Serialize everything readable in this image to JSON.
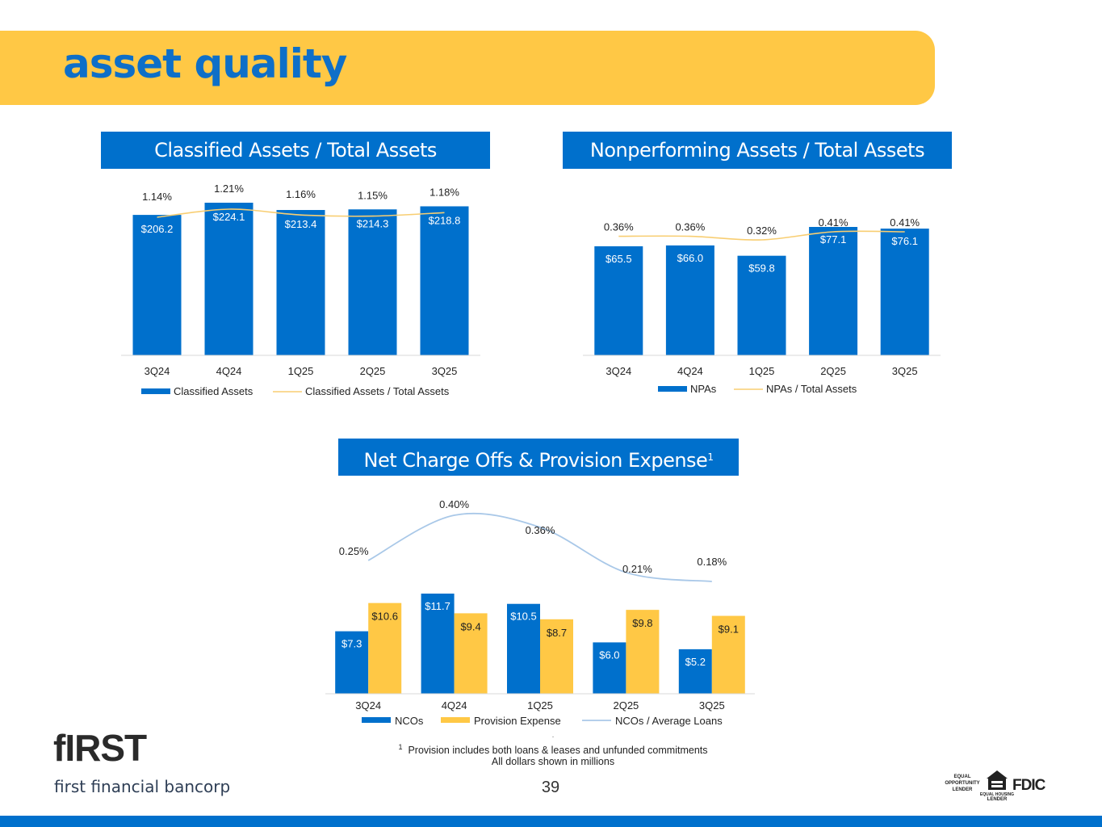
{
  "page": {
    "title": "asset quality",
    "page_number": "39"
  },
  "colors": {
    "brand_blue": "#0070CC",
    "brand_yellow": "#FFC845",
    "line_light_blue": "#A9C8E8",
    "line_yellow": "#F8CE72"
  },
  "footnote": {
    "dot": ".",
    "marker": "1",
    "line1": "Provision includes both loans & leases and unfunded commitments",
    "line2": "All dollars shown in millions"
  },
  "logo": {
    "wordmark": "fIRST",
    "name": "first financial bancorp"
  },
  "badges": {
    "equal_opportunity": "EQUAL OPPORTUNITY LENDER",
    "equal_housing": "EQUAL HOUSING LENDER",
    "fdic": "FDIC"
  },
  "chart_data": [
    {
      "id": "classified",
      "type": "bar",
      "title": "Classified Assets / Total Assets",
      "categories": [
        "3Q24",
        "4Q24",
        "1Q25",
        "2Q25",
        "3Q25"
      ],
      "series": [
        {
          "name": "Classified Assets",
          "kind": "bar",
          "values": [
            206.2,
            224.1,
            213.4,
            214.3,
            218.8
          ],
          "labels": [
            "$206.2",
            "$224.1",
            "$213.4",
            "$214.3",
            "$218.8"
          ]
        },
        {
          "name": "Classified Assets / Total Assets",
          "kind": "line",
          "values": [
            1.14,
            1.21,
            1.16,
            1.15,
            1.18
          ],
          "labels": [
            "1.14%",
            "1.21%",
            "1.16%",
            "1.15%",
            "1.18%"
          ]
        }
      ],
      "grid": false,
      "legend": "bottom"
    },
    {
      "id": "npa",
      "type": "bar",
      "title": "Nonperforming Assets / Total Assets",
      "categories": [
        "3Q24",
        "4Q24",
        "1Q25",
        "2Q25",
        "3Q25"
      ],
      "series": [
        {
          "name": "NPAs",
          "kind": "bar",
          "values": [
            65.5,
            66.0,
            59.8,
            77.1,
            76.1
          ],
          "labels": [
            "$65.5",
            "$66.0",
            "$59.8",
            "$77.1",
            "$76.1"
          ]
        },
        {
          "name": "NPAs / Total Assets",
          "kind": "line",
          "values": [
            0.36,
            0.36,
            0.32,
            0.41,
            0.41
          ],
          "labels": [
            "0.36%",
            "0.36%",
            "0.32%",
            "0.41%",
            "0.41%"
          ]
        }
      ],
      "grid": false,
      "legend": "bottom"
    },
    {
      "id": "nco",
      "type": "bar",
      "title": "Net Charge Offs & Provision Expense",
      "title_sup": "1",
      "categories": [
        "3Q24",
        "4Q24",
        "1Q25",
        "2Q25",
        "3Q25"
      ],
      "series": [
        {
          "name": "NCOs",
          "kind": "bar",
          "values": [
            7.3,
            11.7,
            10.5,
            6.0,
            5.2
          ],
          "labels": [
            "$7.3",
            "$11.7",
            "$10.5",
            "$6.0",
            "$5.2"
          ]
        },
        {
          "name": "Provision Expense",
          "kind": "bar",
          "values": [
            10.6,
            9.4,
            8.7,
            9.8,
            9.1
          ],
          "labels": [
            "$10.6",
            "$9.4",
            "$8.7",
            "$9.8",
            "$9.1"
          ]
        },
        {
          "name": "NCOs / Average Loans",
          "kind": "line",
          "values": [
            0.25,
            0.4,
            0.36,
            0.21,
            0.18
          ],
          "labels": [
            "0.25%",
            "0.40%",
            "0.36%",
            "0.21%",
            "0.18%"
          ]
        }
      ],
      "grid": false,
      "legend": "bottom"
    }
  ]
}
